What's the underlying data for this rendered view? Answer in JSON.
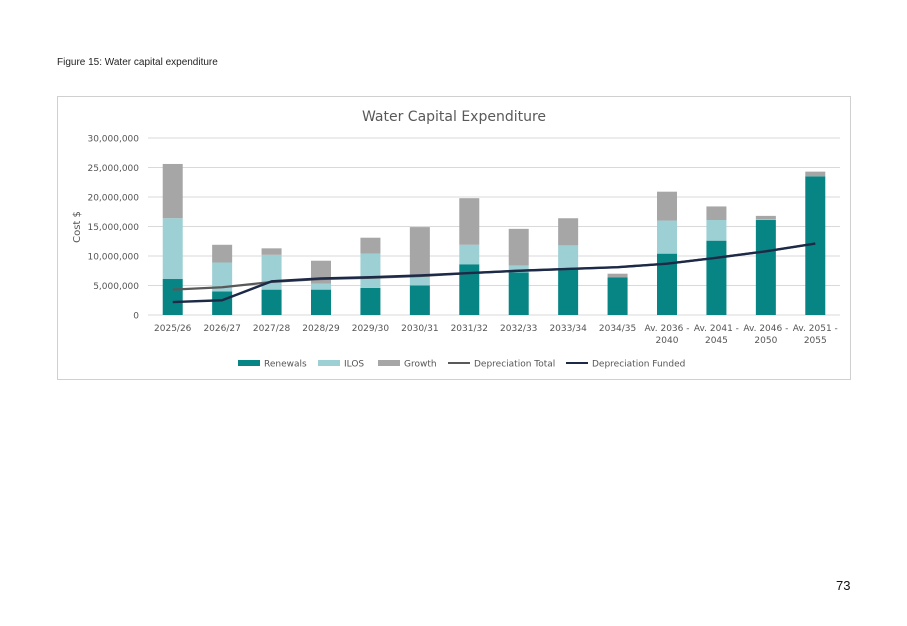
{
  "figure_caption": "Figure 15: Water capital expenditure",
  "page_number": "73",
  "colors": {
    "renewals": "#078584",
    "ilos": "#9dd0d4",
    "growth": "#a6a6a7",
    "depreciation_total": "#595959",
    "depreciation_funded": "#1c2a48",
    "gridline": "#d9d9d9"
  },
  "chart_data": {
    "type": "bar",
    "stacked": true,
    "title": "Water Capital Expenditure",
    "ylabel": "Cost $",
    "xlabel": "",
    "ylim": [
      0,
      30000000
    ],
    "y_ticks": [
      "0",
      "5,000,000",
      "10,000,000",
      "15,000,000",
      "20,000,000",
      "25,000,000",
      "30,000,000"
    ],
    "grid": true,
    "legend_position": "bottom",
    "categories": [
      [
        "2025/26"
      ],
      [
        "2026/27"
      ],
      [
        "2027/28"
      ],
      [
        "2028/29"
      ],
      [
        "2029/30"
      ],
      [
        "2030/31"
      ],
      [
        "2031/32"
      ],
      [
        "2032/33"
      ],
      [
        "2033/34"
      ],
      [
        "2034/35"
      ],
      [
        "Av. 2036 -",
        "2040"
      ],
      [
        "Av. 2041 -",
        "2045"
      ],
      [
        "Av. 2046 -",
        "2050"
      ],
      [
        "Av. 2051 -",
        "2055"
      ]
    ],
    "series": [
      {
        "name": "Renewals",
        "kind": "bar",
        "values": [
          6100000,
          4000000,
          4300000,
          4300000,
          4600000,
          5000000,
          8600000,
          7200000,
          8000000,
          6400000,
          10400000,
          12600000,
          16100000,
          23500000
        ]
      },
      {
        "name": "ILOS",
        "kind": "bar",
        "values": [
          10300000,
          4900000,
          5900000,
          1000000,
          5800000,
          1400000,
          3300000,
          1200000,
          3800000,
          0,
          5600000,
          3500000,
          100000,
          0
        ]
      },
      {
        "name": "Growth",
        "kind": "bar",
        "values": [
          9200000,
          3000000,
          1100000,
          3900000,
          2700000,
          8500000,
          7900000,
          6200000,
          4600000,
          600000,
          4900000,
          2300000,
          600000,
          800000
        ]
      },
      {
        "name": "Depreciation Total",
        "kind": "line",
        "values": [
          4300000,
          4700000,
          5600000,
          6100000,
          6300000,
          6600000,
          7100000,
          7500000,
          7800000,
          8100000,
          8700000,
          9700000,
          10800000,
          12100000
        ]
      },
      {
        "name": "Depreciation Funded",
        "kind": "line",
        "values": [
          2200000,
          2500000,
          5700000,
          6200000,
          6400000,
          6700000,
          7100000,
          7500000,
          7800000,
          8100000,
          8700000,
          9700000,
          10800000,
          12100000
        ]
      }
    ]
  }
}
